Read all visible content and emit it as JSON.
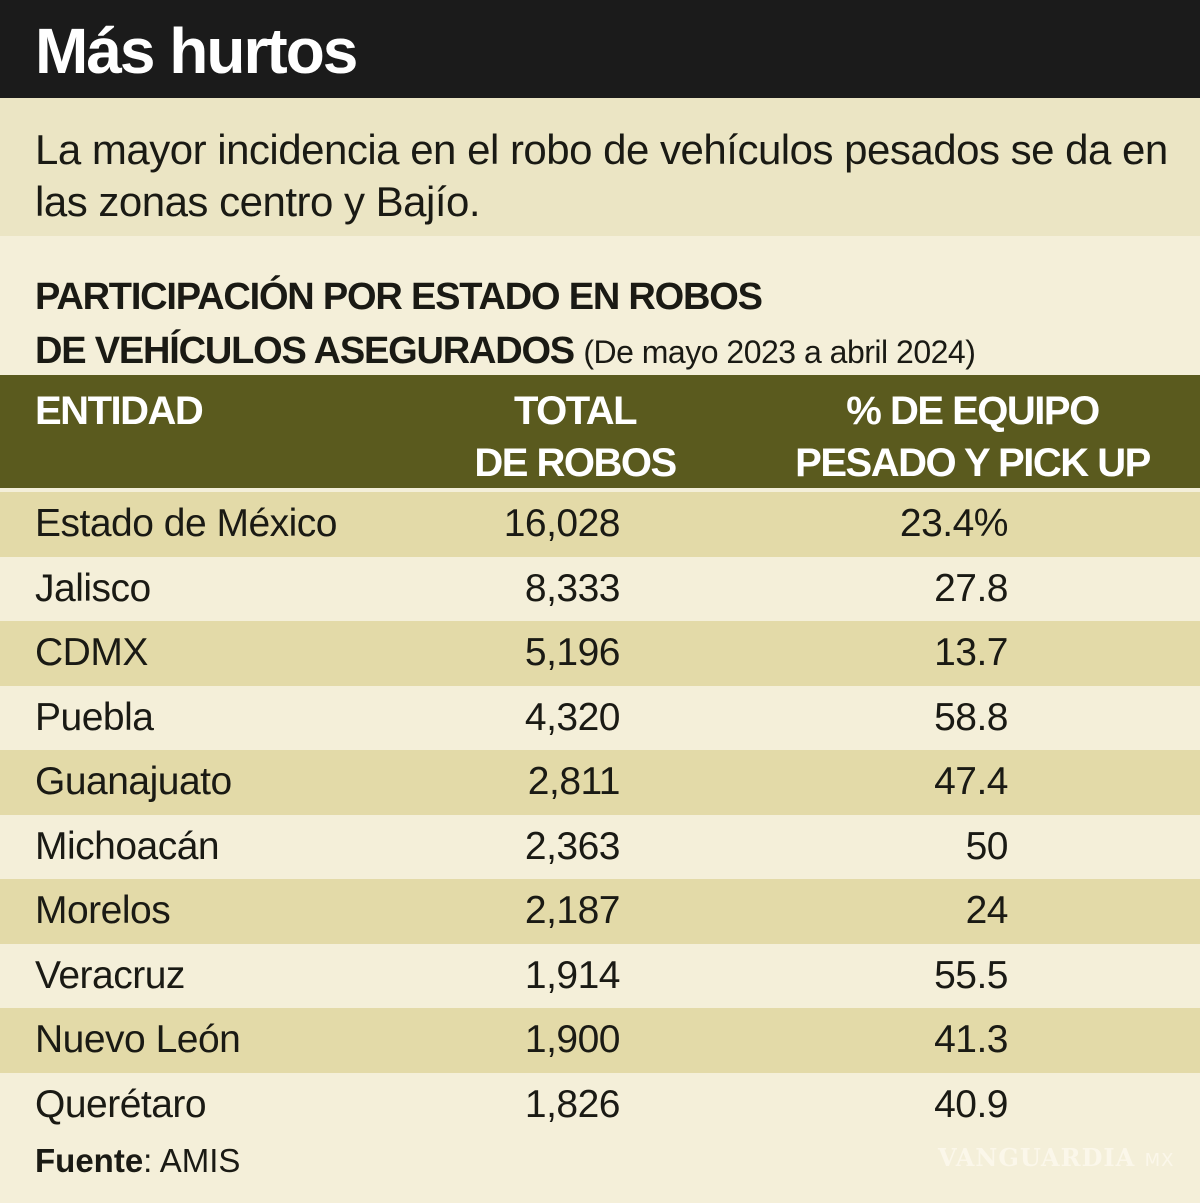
{
  "title": "Más hurtos",
  "subtitle": "La mayor incidencia en el robo de vehículos pesados se da en las zonas centro y Bajío.",
  "table_title_line1": "PARTICIPACIÓN POR ESTADO EN ROBOS",
  "table_title_line2": "DE VEHÍCULOS ASEGURADOS",
  "table_range": "(De mayo 2023 a abril 2024)",
  "source_label": "Fuente",
  "source_value": ": AMIS",
  "watermark": "VANGUARDIA MX",
  "colors": {
    "title_bg": "#1b1b1b",
    "header_bg": "#5a5a1e",
    "stripe": "#e3daa8",
    "background": "#f4efd9"
  },
  "chart_data": {
    "type": "table",
    "columns": [
      "ENTIDAD",
      "TOTAL DE ROBOS",
      "% DE EQUIPO PESADO Y PICK UP"
    ],
    "header": {
      "c1": "ENTIDAD",
      "c2a": "TOTAL",
      "c2b": "DE ROBOS",
      "c3a": "% DE EQUIPO",
      "c3b": "PESADO Y PICK UP"
    },
    "rows": [
      {
        "entidad": "Estado de México",
        "total": "16,028",
        "pct": "23.4%"
      },
      {
        "entidad": "Jalisco",
        "total": "8,333",
        "pct": "27.8"
      },
      {
        "entidad": "CDMX",
        "total": "5,196",
        "pct": "13.7"
      },
      {
        "entidad": "Puebla",
        "total": "4,320",
        "pct": "58.8"
      },
      {
        "entidad": "Guanajuato",
        "total": "2,811",
        "pct": "47.4"
      },
      {
        "entidad": "Michoacán",
        "total": "2,363",
        "pct": "50"
      },
      {
        "entidad": "Morelos",
        "total": "2,187",
        "pct": "24"
      },
      {
        "entidad": "Veracruz",
        "total": "1,914",
        "pct": "55.5"
      },
      {
        "entidad": "Nuevo León",
        "total": "1,900",
        "pct": "41.3"
      },
      {
        "entidad": "Querétaro",
        "total": "1,826",
        "pct": "40.9"
      }
    ]
  }
}
